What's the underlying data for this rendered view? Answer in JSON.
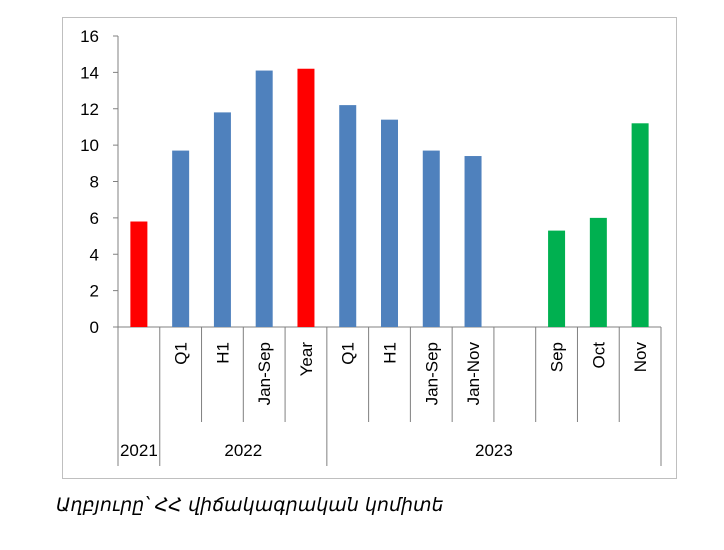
{
  "chart_data": {
    "type": "bar",
    "ylim": [
      0,
      16
    ],
    "yticks": [
      0,
      2,
      4,
      6,
      8,
      10,
      12,
      14,
      16
    ],
    "grid": false,
    "legend": "none",
    "categories": [
      "",
      "Q1",
      "H1",
      "Jan-Sep",
      "Year",
      "Q1",
      "H1",
      "Jan-Sep",
      "Jan-Nov",
      "",
      "Sep",
      "Oct",
      "Nov"
    ],
    "values": [
      5.8,
      9.7,
      11.8,
      14.1,
      14.2,
      12.2,
      11.4,
      9.7,
      9.4,
      null,
      5.3,
      6.0,
      11.2
    ],
    "bar_colors": [
      "#ff0000",
      "#4f81bd",
      "#4f81bd",
      "#4f81bd",
      "#ff0000",
      "#4f81bd",
      "#4f81bd",
      "#4f81bd",
      "#4f81bd",
      null,
      "#00b050",
      "#00b050",
      "#00b050"
    ],
    "groups": [
      {
        "label": "2021",
        "start": 0,
        "end": 0
      },
      {
        "label": "2022",
        "start": 1,
        "end": 4
      },
      {
        "label": "2023",
        "start": 5,
        "end": 12
      }
    ]
  },
  "source_note": "Աղբյուրը՝  ՀՀ վիճակագրական կոմիտե"
}
